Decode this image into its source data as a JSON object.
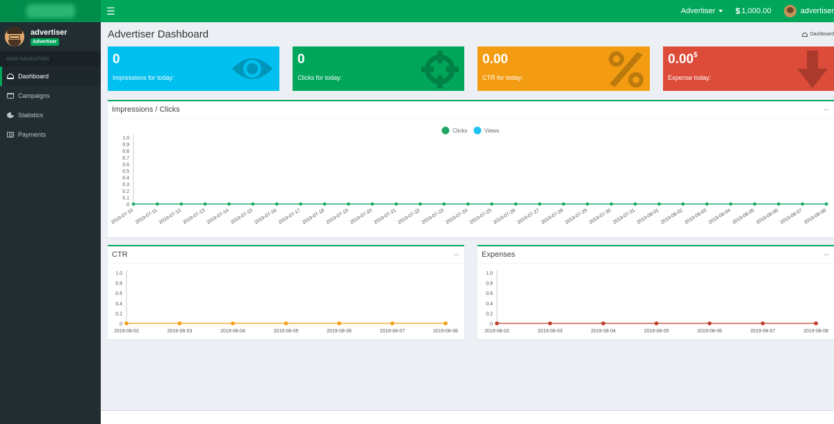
{
  "header": {
    "role_menu": "Advertiser",
    "balance": "1,000.00",
    "balance_symbol": "$",
    "user_menu": "advertiser"
  },
  "sidebar": {
    "user_name": "advertiser",
    "user_badge": "Advertiser",
    "nav_header": "MAIN NAVIGATION",
    "items": [
      {
        "label": "Dashboard",
        "icon": "dashboard-icon",
        "active": true
      },
      {
        "label": "Campaigns",
        "icon": "cart-icon",
        "active": false
      },
      {
        "label": "Statistics",
        "icon": "pie-chart-icon",
        "active": false
      },
      {
        "label": "Payments",
        "icon": "money-icon",
        "active": false
      }
    ]
  },
  "page": {
    "title": "Advertiser Dashboard",
    "breadcrumb": "Dashboard"
  },
  "stats": [
    {
      "value": "0",
      "suffix": "",
      "label": "Impressions for today:",
      "color": "#00c0ef",
      "icon": "eye-icon"
    },
    {
      "value": "0",
      "suffix": "",
      "label": "Clicks for today:",
      "color": "#00a65a",
      "icon": "crosshairs-icon"
    },
    {
      "value": "0.00",
      "suffix": "",
      "label": "CTR for today:",
      "color": "#f39c12",
      "icon": "percent-icon"
    },
    {
      "value": "0.00",
      "suffix": "$",
      "label": "Expense today:",
      "color": "#dd4b39",
      "icon": "arrow-down-icon"
    }
  ],
  "chart_data": [
    {
      "type": "line",
      "title": "Impressions / Clicks",
      "legend": {
        "placement": "top-center"
      },
      "x": [
        "2019-07-10",
        "2019-07-11",
        "2019-07-12",
        "2019-07-13",
        "2019-07-14",
        "2019-07-15",
        "2019-07-16",
        "2019-07-17",
        "2019-07-18",
        "2019-07-19",
        "2019-07-20",
        "2019-07-21",
        "2019-07-22",
        "2019-07-23",
        "2019-07-24",
        "2019-07-25",
        "2019-07-26",
        "2019-07-27",
        "2019-07-28",
        "2019-07-29",
        "2019-07-30",
        "2019-07-31",
        "2019-08-01",
        "2019-08-02",
        "2019-08-03",
        "2019-08-04",
        "2019-08-05",
        "2019-08-06",
        "2019-08-07",
        "2019-08-08"
      ],
      "yticks": [
        "1.0",
        "0.9",
        "0.8",
        "0.7",
        "0.6",
        "0.5",
        "0.4",
        "0.3",
        "0.2",
        "0.1",
        "0"
      ],
      "ylim": [
        0,
        1
      ],
      "series": [
        {
          "name": "Clicks",
          "color": "#1ea861",
          "values": [
            0,
            0,
            0,
            0,
            0,
            0,
            0,
            0,
            0,
            0,
            0,
            0,
            0,
            0,
            0,
            0,
            0,
            0,
            0,
            0,
            0,
            0,
            0,
            0,
            0,
            0,
            0,
            0,
            0,
            0
          ]
        },
        {
          "name": "Views",
          "color": "#1ec1ef",
          "values": [
            0,
            0,
            0,
            0,
            0,
            0,
            0,
            0,
            0,
            0,
            0,
            0,
            0,
            0,
            0,
            0,
            0,
            0,
            0,
            0,
            0,
            0,
            0,
            0,
            0,
            0,
            0,
            0,
            0,
            0
          ]
        }
      ]
    },
    {
      "type": "line",
      "title": "CTR",
      "x": [
        "2019-08-02",
        "2019-08-03",
        "2019-08-04",
        "2019-08-05",
        "2019-08-06",
        "2019-08-07",
        "2019-08-08"
      ],
      "yticks": [
        "1.0",
        "0.8",
        "0.6",
        "0.4",
        "0.2",
        "0"
      ],
      "ylim": [
        0,
        1
      ],
      "series": [
        {
          "color": "#f39c12",
          "values": [
            0,
            0,
            0,
            0,
            0,
            0,
            0
          ]
        }
      ]
    },
    {
      "type": "line",
      "title": "Expenses",
      "x": [
        "2019-08-02",
        "2019-08-03",
        "2019-08-04",
        "2019-08-05",
        "2019-08-06",
        "2019-08-07",
        "2019-08-08"
      ],
      "yticks": [
        "1.0",
        "0.8",
        "0.6",
        "0.4",
        "0.2",
        "0"
      ],
      "ylim": [
        0,
        1
      ],
      "series": [
        {
          "color": "#c0392b",
          "values": [
            0,
            0,
            0,
            0,
            0,
            0,
            0
          ]
        }
      ]
    }
  ]
}
